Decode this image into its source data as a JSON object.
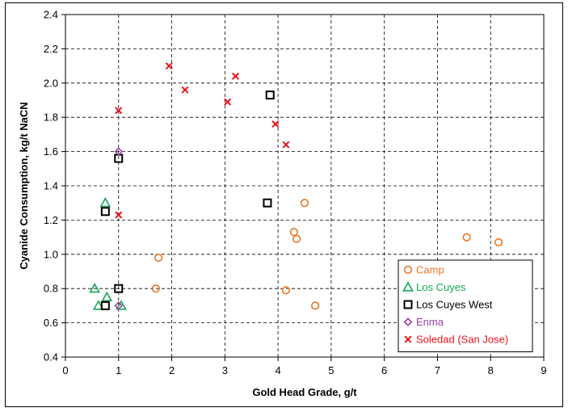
{
  "chart_data": {
    "type": "scatter",
    "title": "",
    "xlabel": "Gold Head Grade, g/t",
    "ylabel": "Cyanide Consumption, kg/t NaCN",
    "xlim": [
      0,
      9
    ],
    "ylim": [
      0.4,
      2.4
    ],
    "x_ticks": [
      "0",
      "1",
      "2",
      "3",
      "4",
      "5",
      "6",
      "7",
      "8",
      "9"
    ],
    "y_ticks": [
      "0.4",
      "0.6",
      "0.8",
      "1.0",
      "1.2",
      "1.4",
      "1.6",
      "1.8",
      "2.0",
      "2.2",
      "2.4"
    ],
    "grid": "dashed",
    "legend_position": "bottom-right",
    "series": [
      {
        "name": "Camp",
        "marker": "circle",
        "color": "#E87722",
        "points": [
          [
            1.75,
            0.98
          ],
          [
            1.7,
            0.8
          ],
          [
            4.5,
            1.3
          ],
          [
            4.3,
            1.13
          ],
          [
            4.35,
            1.09
          ],
          [
            4.15,
            0.79
          ],
          [
            4.7,
            0.7
          ],
          [
            7.55,
            1.1
          ],
          [
            8.15,
            1.07
          ]
        ]
      },
      {
        "name": "Los Cuyes",
        "marker": "triangle",
        "color": "#18A55A",
        "points": [
          [
            0.75,
            1.3
          ],
          [
            0.55,
            0.8
          ],
          [
            0.78,
            0.75
          ],
          [
            0.62,
            0.7
          ],
          [
            1.05,
            0.7
          ]
        ]
      },
      {
        "name": "Los Cuyes West",
        "marker": "square",
        "color": "#000000",
        "points": [
          [
            3.85,
            1.93
          ],
          [
            1.0,
            1.56
          ],
          [
            0.75,
            1.25
          ],
          [
            3.8,
            1.3
          ],
          [
            1.0,
            0.8
          ],
          [
            0.75,
            0.7
          ]
        ]
      },
      {
        "name": "Enma",
        "marker": "diamond",
        "color": "#9B3FA5",
        "points": [
          [
            1.0,
            1.6
          ],
          [
            1.0,
            0.7
          ]
        ]
      },
      {
        "name": "Soledad (San Jose)",
        "marker": "x",
        "color": "#E8141B",
        "points": [
          [
            1.95,
            2.1
          ],
          [
            2.25,
            1.96
          ],
          [
            3.2,
            2.04
          ],
          [
            3.05,
            1.89
          ],
          [
            1.0,
            1.84
          ],
          [
            3.95,
            1.76
          ],
          [
            4.15,
            1.64
          ],
          [
            1.0,
            1.23
          ]
        ]
      }
    ]
  }
}
